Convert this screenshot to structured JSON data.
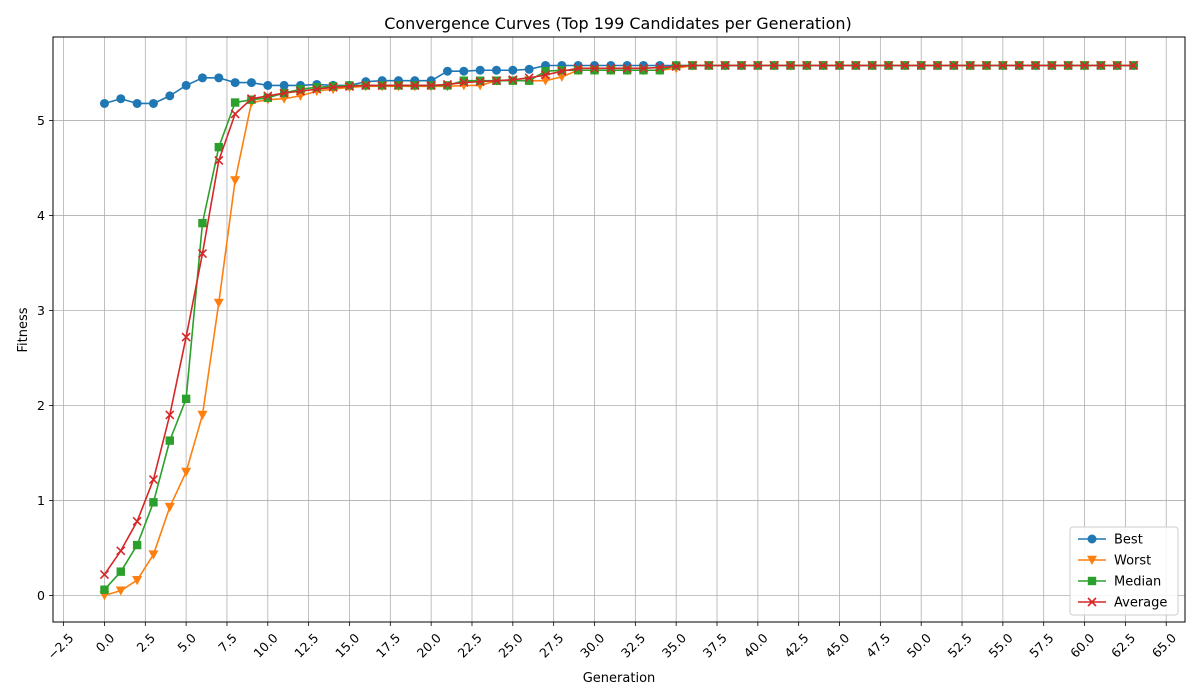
{
  "chart_data": {
    "type": "line",
    "title": "Convergence Curves (Top 199 Candidates per Generation)",
    "xlabel": "Generation",
    "ylabel": "Fitness",
    "xlim": [
      -3.15,
      66.15
    ],
    "ylim": [
      -0.28,
      5.88
    ],
    "xticks": [
      -2.5,
      0.0,
      2.5,
      5.0,
      7.5,
      10.0,
      12.5,
      15.0,
      17.5,
      20.0,
      22.5,
      25.0,
      27.5,
      30.0,
      32.5,
      35.0,
      37.5,
      40.0,
      42.5,
      45.0,
      47.5,
      50.0,
      52.5,
      55.0,
      57.5,
      60.0,
      62.5,
      65.0
    ],
    "xtick_labels": [
      "−2.5",
      "0.0",
      "2.5",
      "5.0",
      "7.5",
      "10.0",
      "12.5",
      "15.0",
      "17.5",
      "20.0",
      "22.5",
      "25.0",
      "27.5",
      "30.0",
      "32.5",
      "35.0",
      "37.5",
      "40.0",
      "42.5",
      "45.0",
      "47.5",
      "50.0",
      "52.5",
      "55.0",
      "57.5",
      "60.0",
      "62.5",
      "65.0"
    ],
    "yticks": [
      0,
      1,
      2,
      3,
      4,
      5
    ],
    "ytick_labels": [
      "0",
      "1",
      "2",
      "3",
      "4",
      "5"
    ],
    "grid": true,
    "legend_position": "bottom-right",
    "series": [
      {
        "name": "Best",
        "color": "#1f77b4",
        "marker": "circle",
        "values": [
          5.18,
          5.23,
          5.18,
          5.18,
          5.26,
          5.37,
          5.45,
          5.45,
          5.4,
          5.4,
          5.37,
          5.37,
          5.37,
          5.38,
          5.37,
          5.37,
          5.41,
          5.42,
          5.42,
          5.42,
          5.42,
          5.52,
          5.52,
          5.53,
          5.53,
          5.53,
          5.54,
          5.58,
          5.58,
          5.58,
          5.58,
          5.58,
          5.58,
          5.58,
          5.58,
          5.58,
          5.58,
          5.58,
          5.58,
          5.58,
          5.58,
          5.58,
          5.58,
          5.58,
          5.58,
          5.58,
          5.58,
          5.58,
          5.58,
          5.58,
          5.58,
          5.58,
          5.58,
          5.58,
          5.58,
          5.58,
          5.58,
          5.58,
          5.58,
          5.58,
          5.58,
          5.58,
          5.58,
          5.58
        ]
      },
      {
        "name": "Worst",
        "color": "#ff7f0e",
        "marker": "triangle-down",
        "values": [
          0.0,
          0.05,
          0.16,
          0.43,
          0.93,
          1.3,
          1.9,
          3.08,
          4.37,
          5.19,
          5.22,
          5.23,
          5.26,
          5.31,
          5.33,
          5.35,
          5.36,
          5.36,
          5.36,
          5.36,
          5.36,
          5.36,
          5.37,
          5.37,
          5.42,
          5.42,
          5.42,
          5.42,
          5.46,
          5.53,
          5.53,
          5.53,
          5.53,
          5.53,
          5.53,
          5.55,
          5.58,
          5.58,
          5.58,
          5.58,
          5.58,
          5.58,
          5.58,
          5.58,
          5.58,
          5.58,
          5.58,
          5.58,
          5.58,
          5.58,
          5.58,
          5.58,
          5.58,
          5.58,
          5.58,
          5.58,
          5.58,
          5.58,
          5.58,
          5.58,
          5.58,
          5.58,
          5.58,
          5.58
        ]
      },
      {
        "name": "Median",
        "color": "#2ca02c",
        "marker": "square",
        "values": [
          0.06,
          0.25,
          0.53,
          0.98,
          1.63,
          2.07,
          3.92,
          4.72,
          5.19,
          5.22,
          5.24,
          5.29,
          5.33,
          5.35,
          5.36,
          5.37,
          5.37,
          5.37,
          5.37,
          5.37,
          5.37,
          5.37,
          5.42,
          5.42,
          5.42,
          5.42,
          5.42,
          5.52,
          5.53,
          5.53,
          5.53,
          5.53,
          5.53,
          5.53,
          5.53,
          5.58,
          5.58,
          5.58,
          5.58,
          5.58,
          5.58,
          5.58,
          5.58,
          5.58,
          5.58,
          5.58,
          5.58,
          5.58,
          5.58,
          5.58,
          5.58,
          5.58,
          5.58,
          5.58,
          5.58,
          5.58,
          5.58,
          5.58,
          5.58,
          5.58,
          5.58,
          5.58,
          5.58,
          5.58
        ]
      },
      {
        "name": "Average",
        "color": "#d62728",
        "marker": "x",
        "values": [
          0.22,
          0.47,
          0.78,
          1.22,
          1.9,
          2.72,
          3.6,
          4.58,
          5.07,
          5.23,
          5.26,
          5.29,
          5.31,
          5.33,
          5.35,
          5.36,
          5.37,
          5.37,
          5.37,
          5.37,
          5.37,
          5.38,
          5.4,
          5.41,
          5.42,
          5.43,
          5.45,
          5.48,
          5.52,
          5.55,
          5.55,
          5.55,
          5.55,
          5.55,
          5.56,
          5.57,
          5.58,
          5.58,
          5.58,
          5.58,
          5.58,
          5.58,
          5.58,
          5.58,
          5.58,
          5.58,
          5.58,
          5.58,
          5.58,
          5.58,
          5.58,
          5.58,
          5.58,
          5.58,
          5.58,
          5.58,
          5.58,
          5.58,
          5.58,
          5.58,
          5.58,
          5.58,
          5.58,
          5.58
        ]
      }
    ]
  }
}
